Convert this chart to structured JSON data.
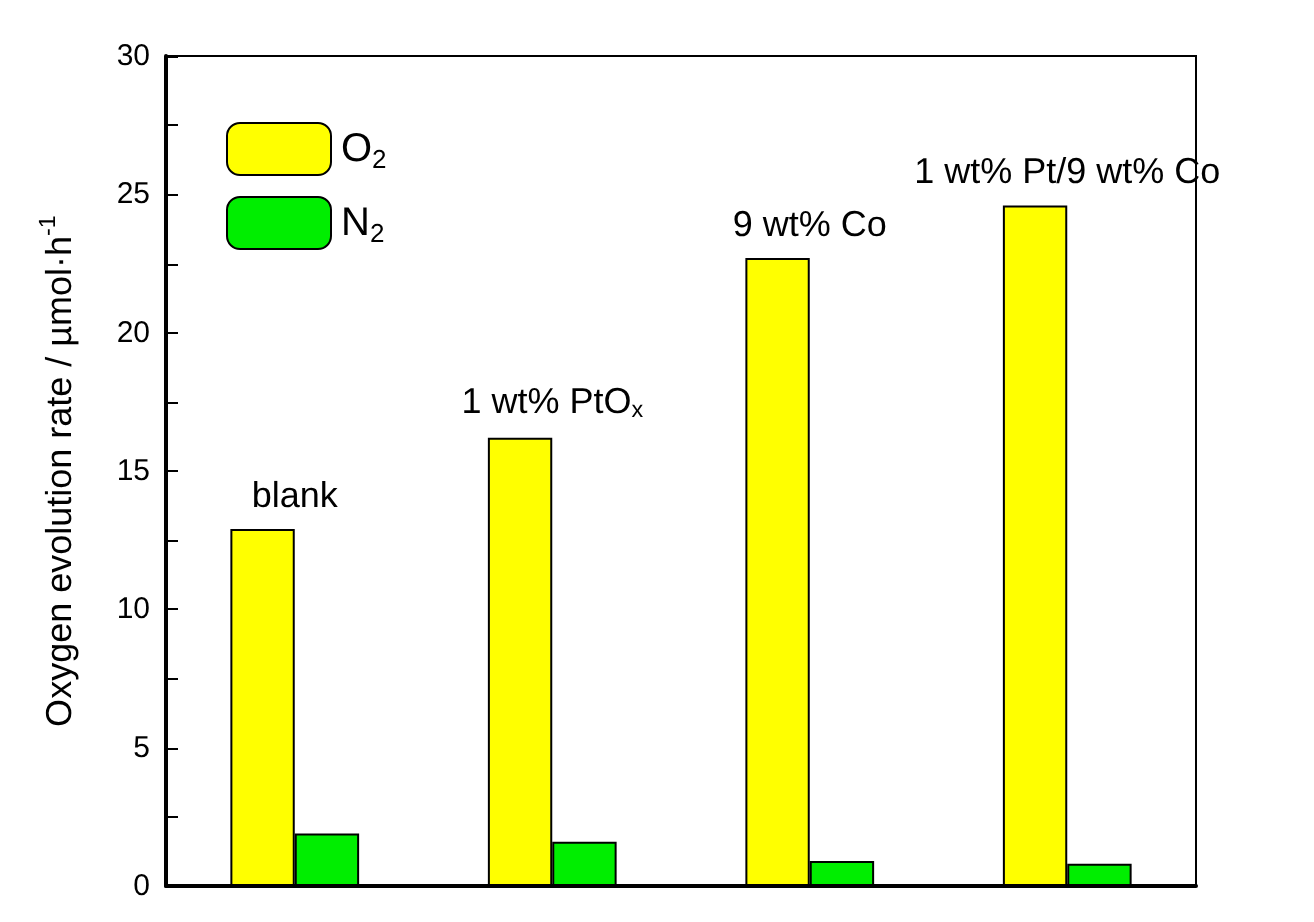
{
  "chart_data": {
    "type": "bar",
    "ylabel": "Oxygen evolution rate / µmol·h$^{-1}$",
    "categories": [
      null,
      null,
      null,
      null
    ],
    "series": [
      {
        "name": "O$_{2}$",
        "color": "#ffff00",
        "values": [
          12.9,
          16.2,
          22.7,
          24.6
        ]
      },
      {
        "name": "N$_{2}$",
        "color": "#00ee00",
        "values": [
          1.9,
          1.6,
          0.9,
          0.8
        ]
      }
    ],
    "ylim": [
      0,
      30
    ],
    "yticks": [
      0,
      {
        "value": 2.5,
        "label": null
      },
      5,
      {
        "value": 7.5,
        "label": null
      },
      10,
      {
        "value": 12.5,
        "label": null
      },
      15,
      {
        "value": 17.5,
        "label": null
      },
      20,
      {
        "value": 22.5,
        "label": null
      },
      25,
      {
        "value": 27.5,
        "label": null
      },
      30
    ],
    "annotations": [
      "blank",
      "1 wt% PtO$_{x}$",
      "9 wt% Co",
      "1 wt% Pt/9 wt% Co"
    ],
    "grid": false,
    "legend": "top left"
  }
}
